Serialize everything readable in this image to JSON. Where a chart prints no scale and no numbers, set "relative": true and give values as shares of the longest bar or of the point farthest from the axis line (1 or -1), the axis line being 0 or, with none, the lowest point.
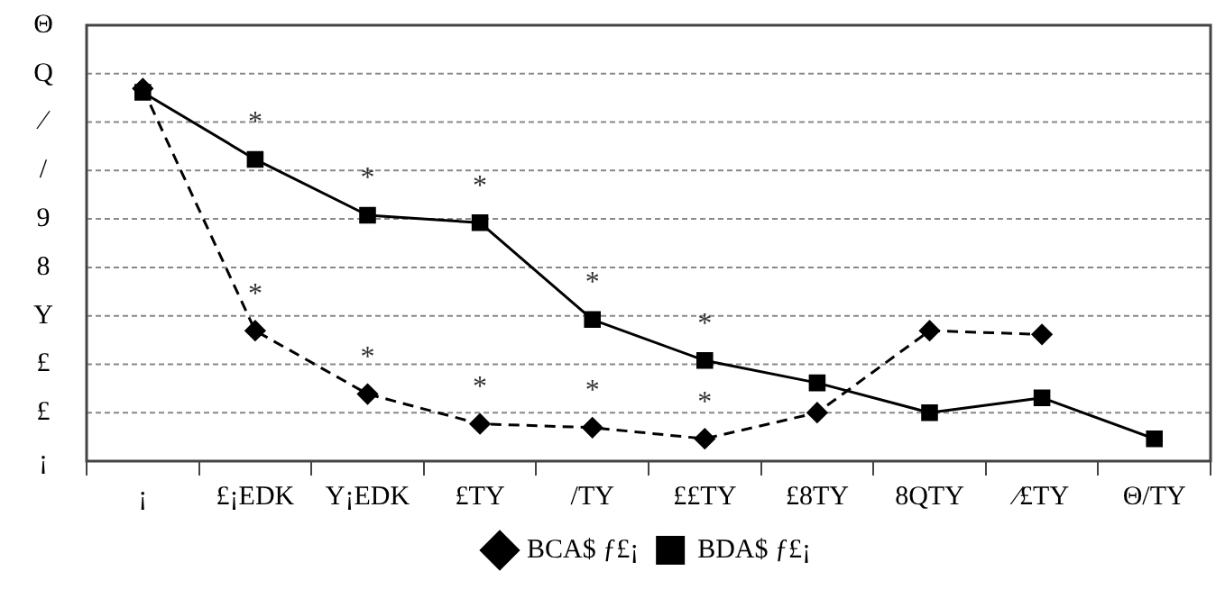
{
  "chart_data": {
    "type": "line",
    "relative": true,
    "categories": [
      "¡",
      "£¡EDK",
      "Y¡EDK",
      "£TY",
      "/TY",
      "££TY",
      "£8TY",
      "8QTY",
      "⁄£TY",
      "Θ/TY"
    ],
    "series": [
      {
        "name": "BCA$ ƒ£¡",
        "color": "#000000",
        "marker": "diamond",
        "line_style": "dashed",
        "values": [
          1,
          0.35,
          0.18,
          0.1,
          0.09,
          0.06,
          0.13,
          0.35,
          0.34,
          null
        ]
      },
      {
        "name": "BDA$ ƒ£¡",
        "color": "#000000",
        "marker": "square",
        "line_style": "solid",
        "values": [
          0.99,
          0.81,
          0.66,
          0.64,
          0.38,
          0.27,
          0.21,
          0.13,
          0.17,
          0.06
        ]
      }
    ],
    "annotations": [
      "¡",
      "£",
      "£",
      "Y",
      "8",
      "9",
      "/",
      "⁄",
      "Q",
      "Θ",
      {
        "text": "*",
        "x": "£¡EDK",
        "y": 0.81
      },
      {
        "text": "*",
        "x": "£¡EDK",
        "y": 0.35
      },
      {
        "text": "*",
        "x": "Y¡EDK",
        "y": 0.66
      },
      {
        "text": "*",
        "x": "Y¡EDK",
        "y": 0.18
      },
      {
        "text": "*",
        "x": "£TY",
        "y": 0.64
      },
      {
        "text": "*",
        "x": "£TY",
        "y": 0.1
      },
      {
        "text": "*",
        "x": "/TY",
        "y": 0.38
      },
      {
        "text": "*",
        "x": "/TY",
        "y": 0.09
      },
      {
        "text": "*",
        "x": "££TY",
        "y": 0.27
      },
      {
        "text": "*",
        "x": "££TY",
        "y": 0.06
      }
    ],
    "grid": "y",
    "legend": "bottom"
  }
}
